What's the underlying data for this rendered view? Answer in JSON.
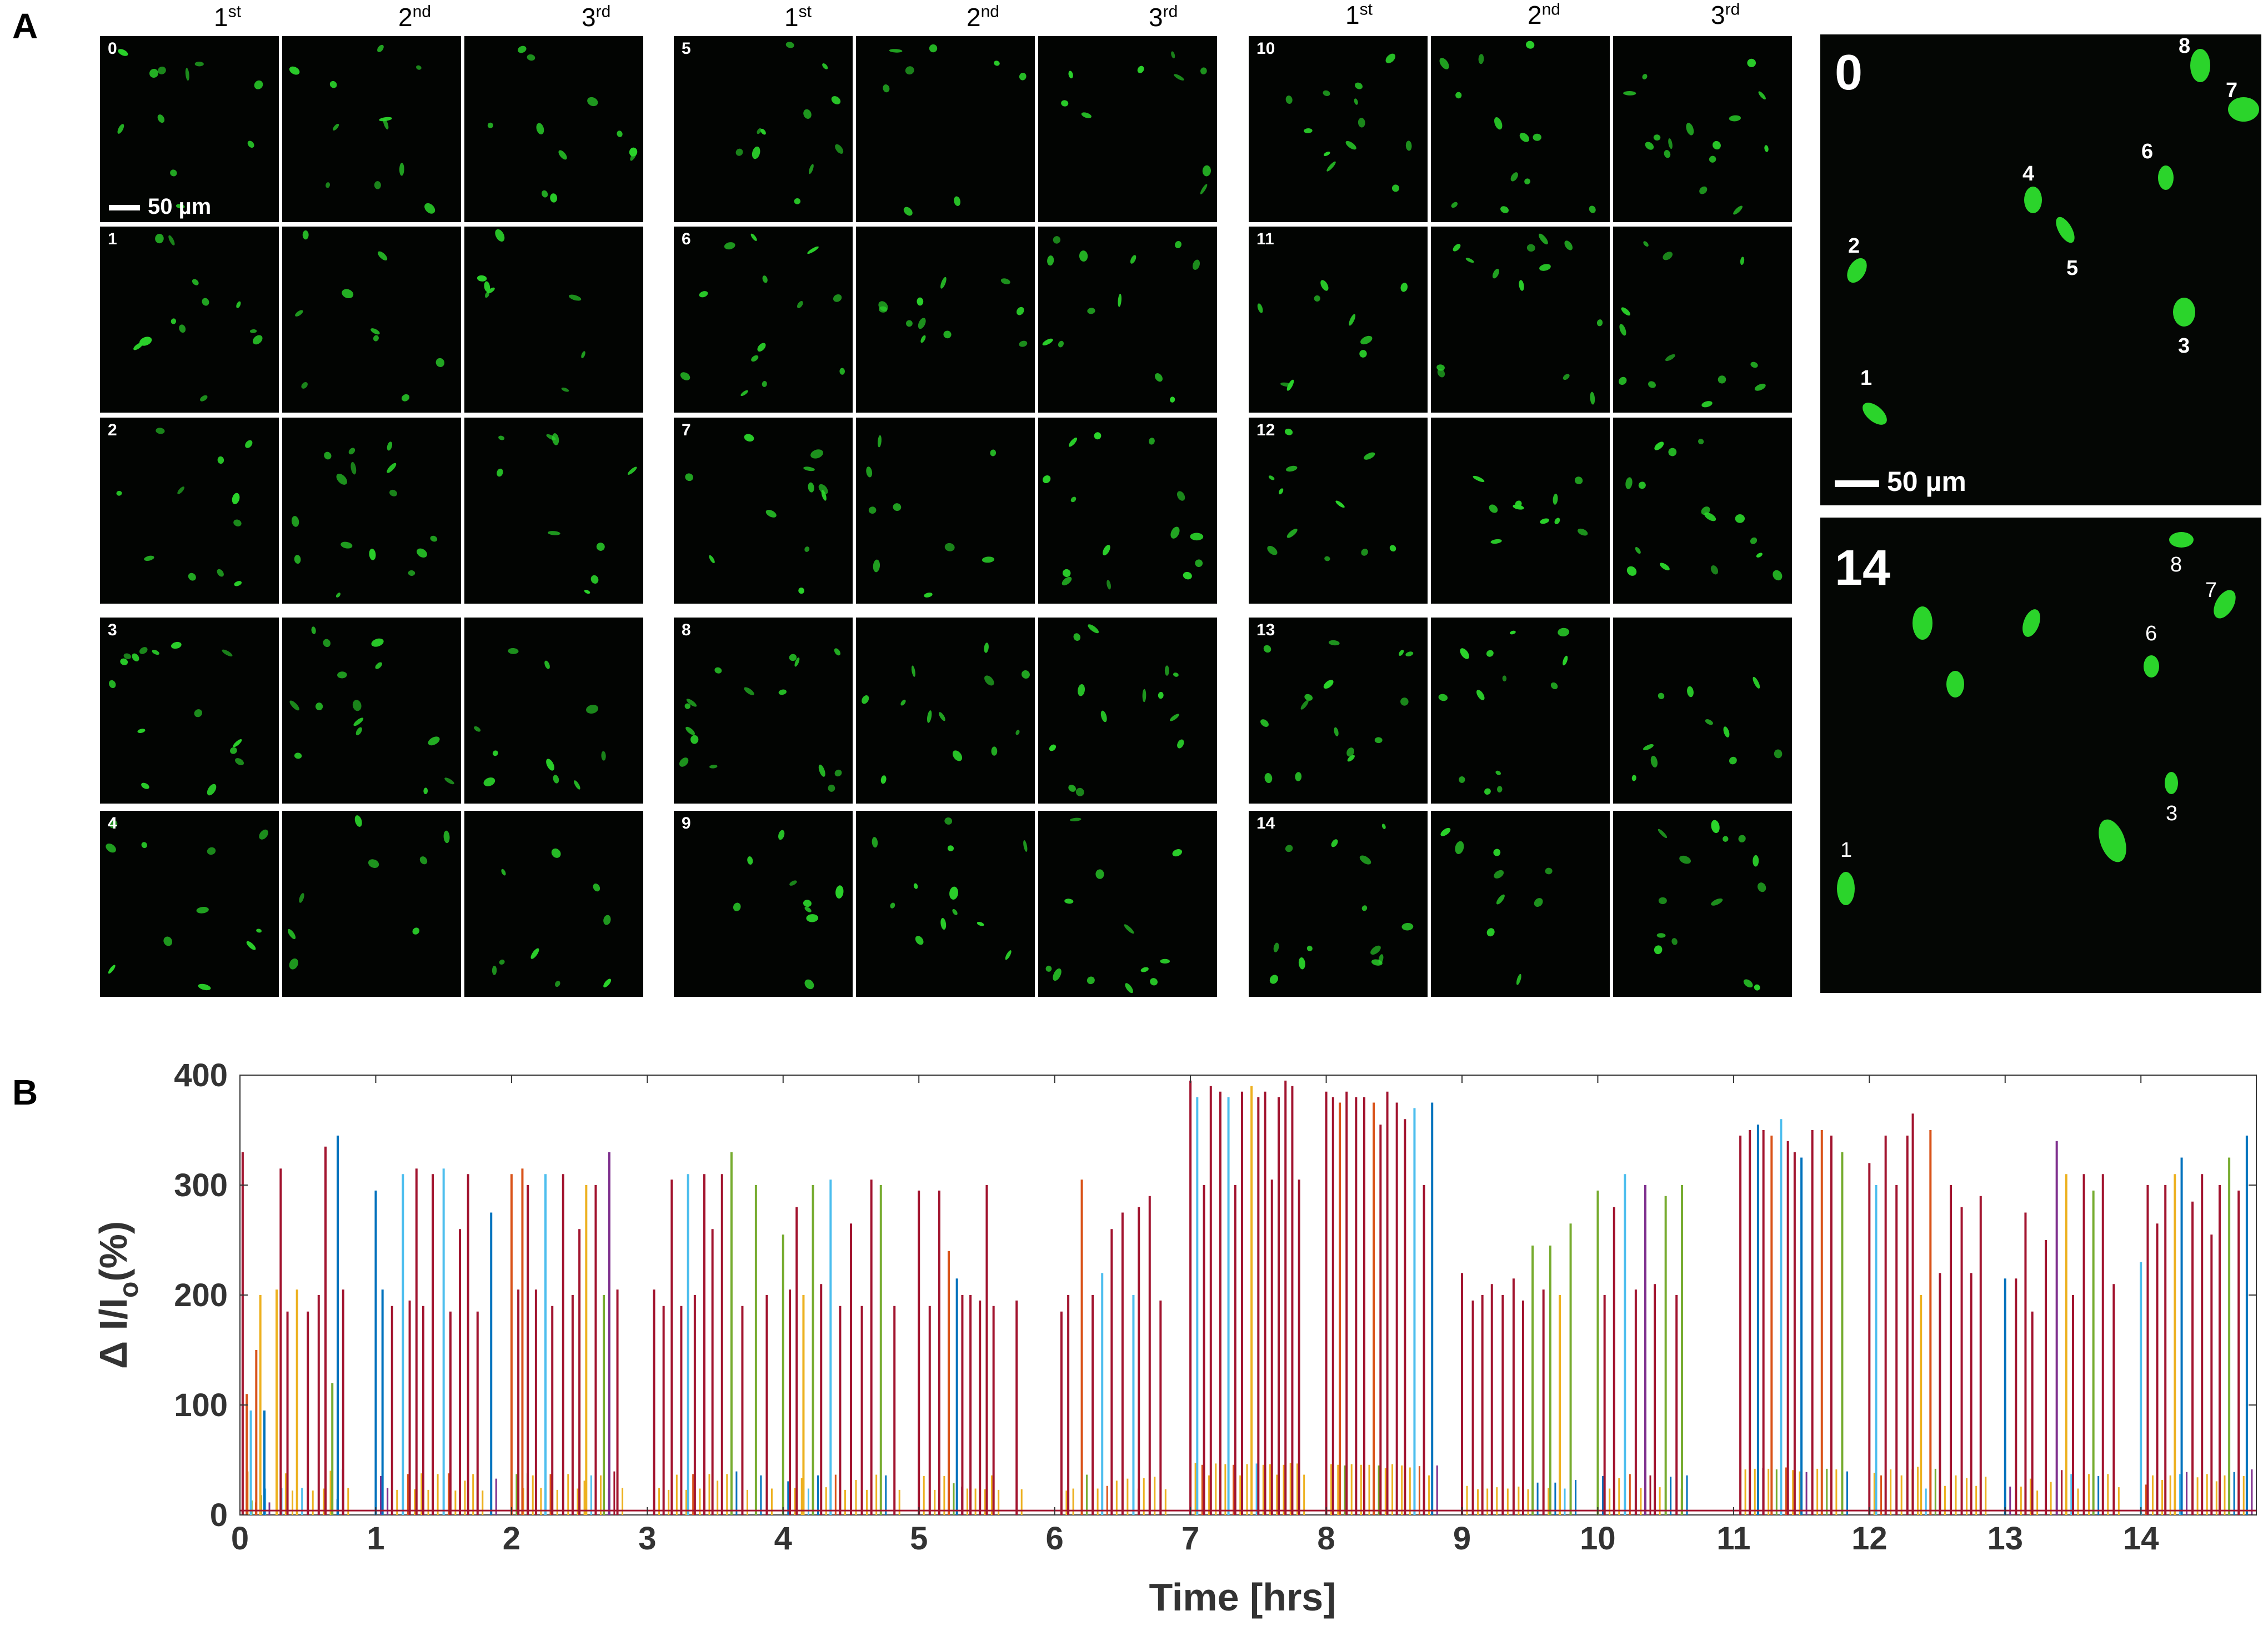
{
  "panel_a": {
    "letter": "A",
    "column_headers": [
      {
        "num": "1",
        "sup": "st"
      },
      {
        "num": "2",
        "sup": "nd"
      },
      {
        "num": "3",
        "sup": "rd"
      },
      {
        "num": "1",
        "sup": "st"
      },
      {
        "num": "2",
        "sup": "nd"
      },
      {
        "num": "3",
        "sup": "rd"
      },
      {
        "num": "1",
        "sup": "st"
      },
      {
        "num": "2",
        "sup": "nd"
      },
      {
        "num": "3",
        "sup": "rd"
      }
    ],
    "row_labels": [
      "0",
      "1",
      "2",
      "3",
      "4",
      "5",
      "6",
      "7",
      "8",
      "9",
      "10",
      "11",
      "12",
      "13",
      "14"
    ],
    "scale_bar": "50 µm",
    "tile_fill_color": "#020402",
    "cell_color": "#2bd42b",
    "zoom_top": {
      "label": "0",
      "scale_bar": "50 µm",
      "cells": [
        "1",
        "2",
        "3",
        "4",
        "5",
        "6",
        "7",
        "8"
      ]
    },
    "zoom_bottom": {
      "label": "14",
      "cells": [
        "1",
        "3",
        "6",
        "7",
        "8"
      ]
    }
  },
  "panel_b": {
    "letter": "B"
  },
  "chart_data": {
    "type": "line",
    "title": "",
    "xlabel": "Time [hrs]",
    "ylabel": "Δ I/I_o(%)",
    "ylabel_parts": {
      "delta": "Δ",
      "main": "I/I",
      "sub": "o",
      "tail": "(%)"
    },
    "xlim": [
      0,
      14.85
    ],
    "ylim": [
      0,
      400
    ],
    "xticks": [
      "0",
      "1",
      "2",
      "3",
      "4",
      "5",
      "6",
      "7",
      "8",
      "9",
      "10",
      "11",
      "12",
      "13",
      "14"
    ],
    "yticks": [
      "0",
      "100",
      "200",
      "300",
      "400"
    ],
    "grid": false,
    "series_colors": [
      "#0072bd",
      "#d95319",
      "#edb120",
      "#7e2f8e",
      "#77ac30",
      "#4dbeee",
      "#a2142f"
    ],
    "spikes": [
      {
        "x": 0.02,
        "y": 330,
        "c": 6
      },
      {
        "x": 0.05,
        "y": 110,
        "c": 1
      },
      {
        "x": 0.08,
        "y": 95,
        "c": 5
      },
      {
        "x": 0.12,
        "y": 150,
        "c": 1
      },
      {
        "x": 0.15,
        "y": 200,
        "c": 2
      },
      {
        "x": 0.18,
        "y": 95,
        "c": 0
      },
      {
        "x": 0.27,
        "y": 205,
        "c": 2
      },
      {
        "x": 0.3,
        "y": 315,
        "c": 6
      },
      {
        "x": 0.35,
        "y": 185,
        "c": 6
      },
      {
        "x": 0.42,
        "y": 205,
        "c": 2
      },
      {
        "x": 0.5,
        "y": 185,
        "c": 6
      },
      {
        "x": 0.58,
        "y": 200,
        "c": 6
      },
      {
        "x": 0.63,
        "y": 335,
        "c": 6
      },
      {
        "x": 0.68,
        "y": 120,
        "c": 4
      },
      {
        "x": 0.72,
        "y": 345,
        "c": 0
      },
      {
        "x": 0.76,
        "y": 205,
        "c": 6
      },
      {
        "x": 1.0,
        "y": 295,
        "c": 0
      },
      {
        "x": 1.05,
        "y": 205,
        "c": 0
      },
      {
        "x": 1.12,
        "y": 190,
        "c": 6
      },
      {
        "x": 1.2,
        "y": 310,
        "c": 5
      },
      {
        "x": 1.25,
        "y": 195,
        "c": 6
      },
      {
        "x": 1.3,
        "y": 315,
        "c": 6
      },
      {
        "x": 1.35,
        "y": 190,
        "c": 6
      },
      {
        "x": 1.42,
        "y": 310,
        "c": 6
      },
      {
        "x": 1.5,
        "y": 315,
        "c": 5
      },
      {
        "x": 1.55,
        "y": 185,
        "c": 6
      },
      {
        "x": 1.62,
        "y": 260,
        "c": 6
      },
      {
        "x": 1.68,
        "y": 310,
        "c": 6
      },
      {
        "x": 1.75,
        "y": 185,
        "c": 6
      },
      {
        "x": 1.85,
        "y": 275,
        "c": 0
      },
      {
        "x": 2.0,
        "y": 310,
        "c": 1
      },
      {
        "x": 2.05,
        "y": 205,
        "c": 6
      },
      {
        "x": 2.08,
        "y": 315,
        "c": 1
      },
      {
        "x": 2.12,
        "y": 300,
        "c": 6
      },
      {
        "x": 2.18,
        "y": 205,
        "c": 6
      },
      {
        "x": 2.25,
        "y": 310,
        "c": 5
      },
      {
        "x": 2.3,
        "y": 190,
        "c": 6
      },
      {
        "x": 2.38,
        "y": 310,
        "c": 6
      },
      {
        "x": 2.45,
        "y": 200,
        "c": 6
      },
      {
        "x": 2.5,
        "y": 260,
        "c": 6
      },
      {
        "x": 2.55,
        "y": 300,
        "c": 2
      },
      {
        "x": 2.62,
        "y": 300,
        "c": 6
      },
      {
        "x": 2.68,
        "y": 200,
        "c": 4
      },
      {
        "x": 2.72,
        "y": 330,
        "c": 3
      },
      {
        "x": 2.78,
        "y": 205,
        "c": 6
      },
      {
        "x": 3.05,
        "y": 205,
        "c": 6
      },
      {
        "x": 3.12,
        "y": 190,
        "c": 6
      },
      {
        "x": 3.18,
        "y": 305,
        "c": 6
      },
      {
        "x": 3.25,
        "y": 190,
        "c": 6
      },
      {
        "x": 3.3,
        "y": 310,
        "c": 5
      },
      {
        "x": 3.35,
        "y": 200,
        "c": 6
      },
      {
        "x": 3.42,
        "y": 310,
        "c": 6
      },
      {
        "x": 3.48,
        "y": 260,
        "c": 6
      },
      {
        "x": 3.55,
        "y": 310,
        "c": 6
      },
      {
        "x": 3.62,
        "y": 330,
        "c": 4
      },
      {
        "x": 3.7,
        "y": 190,
        "c": 6
      },
      {
        "x": 3.8,
        "y": 300,
        "c": 4
      },
      {
        "x": 3.88,
        "y": 200,
        "c": 6
      },
      {
        "x": 4.0,
        "y": 255,
        "c": 4
      },
      {
        "x": 4.05,
        "y": 205,
        "c": 6
      },
      {
        "x": 4.1,
        "y": 280,
        "c": 6
      },
      {
        "x": 4.15,
        "y": 200,
        "c": 2
      },
      {
        "x": 4.22,
        "y": 300,
        "c": 4
      },
      {
        "x": 4.28,
        "y": 210,
        "c": 6
      },
      {
        "x": 4.35,
        "y": 305,
        "c": 5
      },
      {
        "x": 4.42,
        "y": 190,
        "c": 6
      },
      {
        "x": 4.5,
        "y": 265,
        "c": 6
      },
      {
        "x": 4.58,
        "y": 190,
        "c": 6
      },
      {
        "x": 4.65,
        "y": 305,
        "c": 6
      },
      {
        "x": 4.72,
        "y": 300,
        "c": 4
      },
      {
        "x": 4.82,
        "y": 190,
        "c": 6
      },
      {
        "x": 5.0,
        "y": 295,
        "c": 6
      },
      {
        "x": 5.08,
        "y": 190,
        "c": 6
      },
      {
        "x": 5.15,
        "y": 295,
        "c": 6
      },
      {
        "x": 5.22,
        "y": 240,
        "c": 1
      },
      {
        "x": 5.28,
        "y": 215,
        "c": 0
      },
      {
        "x": 5.32,
        "y": 200,
        "c": 6
      },
      {
        "x": 5.38,
        "y": 200,
        "c": 6
      },
      {
        "x": 5.45,
        "y": 195,
        "c": 6
      },
      {
        "x": 5.5,
        "y": 300,
        "c": 6
      },
      {
        "x": 5.55,
        "y": 190,
        "c": 6
      },
      {
        "x": 5.72,
        "y": 195,
        "c": 6
      },
      {
        "x": 6.05,
        "y": 185,
        "c": 6
      },
      {
        "x": 6.1,
        "y": 200,
        "c": 6
      },
      {
        "x": 6.2,
        "y": 305,
        "c": 1
      },
      {
        "x": 6.28,
        "y": 200,
        "c": 6
      },
      {
        "x": 6.35,
        "y": 220,
        "c": 5
      },
      {
        "x": 6.42,
        "y": 260,
        "c": 6
      },
      {
        "x": 6.5,
        "y": 275,
        "c": 6
      },
      {
        "x": 6.58,
        "y": 200,
        "c": 5
      },
      {
        "x": 6.62,
        "y": 280,
        "c": 6
      },
      {
        "x": 6.7,
        "y": 290,
        "c": 6
      },
      {
        "x": 6.78,
        "y": 195,
        "c": 6
      },
      {
        "x": 7.0,
        "y": 395,
        "c": 6
      },
      {
        "x": 7.05,
        "y": 380,
        "c": 5
      },
      {
        "x": 7.1,
        "y": 300,
        "c": 6
      },
      {
        "x": 7.15,
        "y": 390,
        "c": 6
      },
      {
        "x": 7.22,
        "y": 385,
        "c": 6
      },
      {
        "x": 7.28,
        "y": 380,
        "c": 5
      },
      {
        "x": 7.33,
        "y": 300,
        "c": 6
      },
      {
        "x": 7.38,
        "y": 385,
        "c": 6
      },
      {
        "x": 7.45,
        "y": 390,
        "c": 2
      },
      {
        "x": 7.5,
        "y": 380,
        "c": 6
      },
      {
        "x": 7.55,
        "y": 385,
        "c": 6
      },
      {
        "x": 7.6,
        "y": 305,
        "c": 6
      },
      {
        "x": 7.65,
        "y": 380,
        "c": 6
      },
      {
        "x": 7.7,
        "y": 395,
        "c": 6
      },
      {
        "x": 7.75,
        "y": 390,
        "c": 6
      },
      {
        "x": 7.8,
        "y": 305,
        "c": 6
      },
      {
        "x": 8.0,
        "y": 385,
        "c": 6
      },
      {
        "x": 8.05,
        "y": 380,
        "c": 6
      },
      {
        "x": 8.1,
        "y": 375,
        "c": 1
      },
      {
        "x": 8.15,
        "y": 385,
        "c": 6
      },
      {
        "x": 8.22,
        "y": 380,
        "c": 6
      },
      {
        "x": 8.28,
        "y": 380,
        "c": 6
      },
      {
        "x": 8.35,
        "y": 375,
        "c": 1
      },
      {
        "x": 8.4,
        "y": 355,
        "c": 6
      },
      {
        "x": 8.45,
        "y": 385,
        "c": 6
      },
      {
        "x": 8.52,
        "y": 375,
        "c": 6
      },
      {
        "x": 8.58,
        "y": 360,
        "c": 6
      },
      {
        "x": 8.65,
        "y": 370,
        "c": 5
      },
      {
        "x": 8.72,
        "y": 300,
        "c": 6
      },
      {
        "x": 8.78,
        "y": 375,
        "c": 0
      },
      {
        "x": 9.0,
        "y": 220,
        "c": 6
      },
      {
        "x": 9.08,
        "y": 195,
        "c": 6
      },
      {
        "x": 9.15,
        "y": 200,
        "c": 6
      },
      {
        "x": 9.22,
        "y": 210,
        "c": 6
      },
      {
        "x": 9.3,
        "y": 200,
        "c": 6
      },
      {
        "x": 9.38,
        "y": 215,
        "c": 6
      },
      {
        "x": 9.45,
        "y": 195,
        "c": 6
      },
      {
        "x": 9.52,
        "y": 245,
        "c": 4
      },
      {
        "x": 9.6,
        "y": 205,
        "c": 6
      },
      {
        "x": 9.65,
        "y": 245,
        "c": 4
      },
      {
        "x": 9.72,
        "y": 200,
        "c": 2
      },
      {
        "x": 9.8,
        "y": 265,
        "c": 4
      },
      {
        "x": 10.0,
        "y": 295,
        "c": 4
      },
      {
        "x": 10.05,
        "y": 200,
        "c": 6
      },
      {
        "x": 10.12,
        "y": 280,
        "c": 6
      },
      {
        "x": 10.2,
        "y": 310,
        "c": 5
      },
      {
        "x": 10.28,
        "y": 205,
        "c": 6
      },
      {
        "x": 10.35,
        "y": 300,
        "c": 3
      },
      {
        "x": 10.42,
        "y": 210,
        "c": 6
      },
      {
        "x": 10.5,
        "y": 290,
        "c": 4
      },
      {
        "x": 10.58,
        "y": 200,
        "c": 6
      },
      {
        "x": 10.62,
        "y": 300,
        "c": 4
      },
      {
        "x": 11.05,
        "y": 345,
        "c": 6
      },
      {
        "x": 11.12,
        "y": 350,
        "c": 6
      },
      {
        "x": 11.18,
        "y": 355,
        "c": 0
      },
      {
        "x": 11.22,
        "y": 350,
        "c": 6
      },
      {
        "x": 11.28,
        "y": 345,
        "c": 1
      },
      {
        "x": 11.35,
        "y": 360,
        "c": 5
      },
      {
        "x": 11.4,
        "y": 340,
        "c": 6
      },
      {
        "x": 11.45,
        "y": 330,
        "c": 6
      },
      {
        "x": 11.5,
        "y": 325,
        "c": 0
      },
      {
        "x": 11.58,
        "y": 350,
        "c": 6
      },
      {
        "x": 11.65,
        "y": 350,
        "c": 1
      },
      {
        "x": 11.72,
        "y": 345,
        "c": 6
      },
      {
        "x": 11.8,
        "y": 330,
        "c": 4
      },
      {
        "x": 12.0,
        "y": 320,
        "c": 6
      },
      {
        "x": 12.05,
        "y": 300,
        "c": 5
      },
      {
        "x": 12.12,
        "y": 345,
        "c": 6
      },
      {
        "x": 12.2,
        "y": 300,
        "c": 6
      },
      {
        "x": 12.28,
        "y": 345,
        "c": 6
      },
      {
        "x": 12.32,
        "y": 365,
        "c": 6
      },
      {
        "x": 12.38,
        "y": 200,
        "c": 2
      },
      {
        "x": 12.45,
        "y": 350,
        "c": 1
      },
      {
        "x": 12.52,
        "y": 220,
        "c": 6
      },
      {
        "x": 12.6,
        "y": 300,
        "c": 6
      },
      {
        "x": 12.68,
        "y": 280,
        "c": 6
      },
      {
        "x": 12.75,
        "y": 220,
        "c": 6
      },
      {
        "x": 12.82,
        "y": 290,
        "c": 6
      },
      {
        "x": 13.0,
        "y": 215,
        "c": 0
      },
      {
        "x": 13.08,
        "y": 215,
        "c": 6
      },
      {
        "x": 13.15,
        "y": 275,
        "c": 6
      },
      {
        "x": 13.2,
        "y": 185,
        "c": 6
      },
      {
        "x": 13.3,
        "y": 250,
        "c": 6
      },
      {
        "x": 13.38,
        "y": 340,
        "c": 3
      },
      {
        "x": 13.45,
        "y": 310,
        "c": 2
      },
      {
        "x": 13.5,
        "y": 200,
        "c": 6
      },
      {
        "x": 13.58,
        "y": 310,
        "c": 6
      },
      {
        "x": 13.65,
        "y": 295,
        "c": 4
      },
      {
        "x": 13.72,
        "y": 310,
        "c": 6
      },
      {
        "x": 13.8,
        "y": 210,
        "c": 6
      },
      {
        "x": 14.0,
        "y": 230,
        "c": 5
      },
      {
        "x": 14.05,
        "y": 300,
        "c": 6
      },
      {
        "x": 14.12,
        "y": 265,
        "c": 6
      },
      {
        "x": 14.18,
        "y": 300,
        "c": 6
      },
      {
        "x": 14.25,
        "y": 310,
        "c": 2
      },
      {
        "x": 14.3,
        "y": 325,
        "c": 0
      },
      {
        "x": 14.38,
        "y": 285,
        "c": 6
      },
      {
        "x": 14.45,
        "y": 310,
        "c": 6
      },
      {
        "x": 14.52,
        "y": 255,
        "c": 6
      },
      {
        "x": 14.58,
        "y": 300,
        "c": 6
      },
      {
        "x": 14.65,
        "y": 325,
        "c": 4
      },
      {
        "x": 14.72,
        "y": 295,
        "c": 6
      },
      {
        "x": 14.78,
        "y": 345,
        "c": 0
      }
    ]
  }
}
